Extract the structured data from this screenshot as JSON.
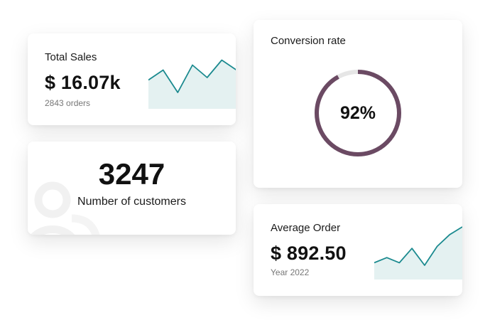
{
  "total_sales": {
    "title": "Total Sales",
    "value": "$ 16.07k",
    "subtitle": "2843 orders",
    "trend_icon": "sparkline-area-chart",
    "trend_values": [
      0.55,
      0.75,
      0.3,
      0.85,
      0.6,
      0.95,
      0.75
    ]
  },
  "customers": {
    "value": "3247",
    "label": "Number of customers",
    "icon": "users-icon"
  },
  "conversion": {
    "title": "Conversion rate",
    "value_label": "92%",
    "percent": 92,
    "ring_color": "#6b4a63",
    "track_color": "#e6e6e6"
  },
  "average_order": {
    "title": "Average Order",
    "value": "$ 892.50",
    "subtitle": "Year 2022",
    "trend_icon": "sparkline-area-chart",
    "trend_values": [
      0.3,
      0.4,
      0.3,
      0.58,
      0.25,
      0.62,
      0.85,
      1.0
    ]
  },
  "colors": {
    "spark_line": "#1b8a8f",
    "spark_fill": "#e4f1f1"
  }
}
